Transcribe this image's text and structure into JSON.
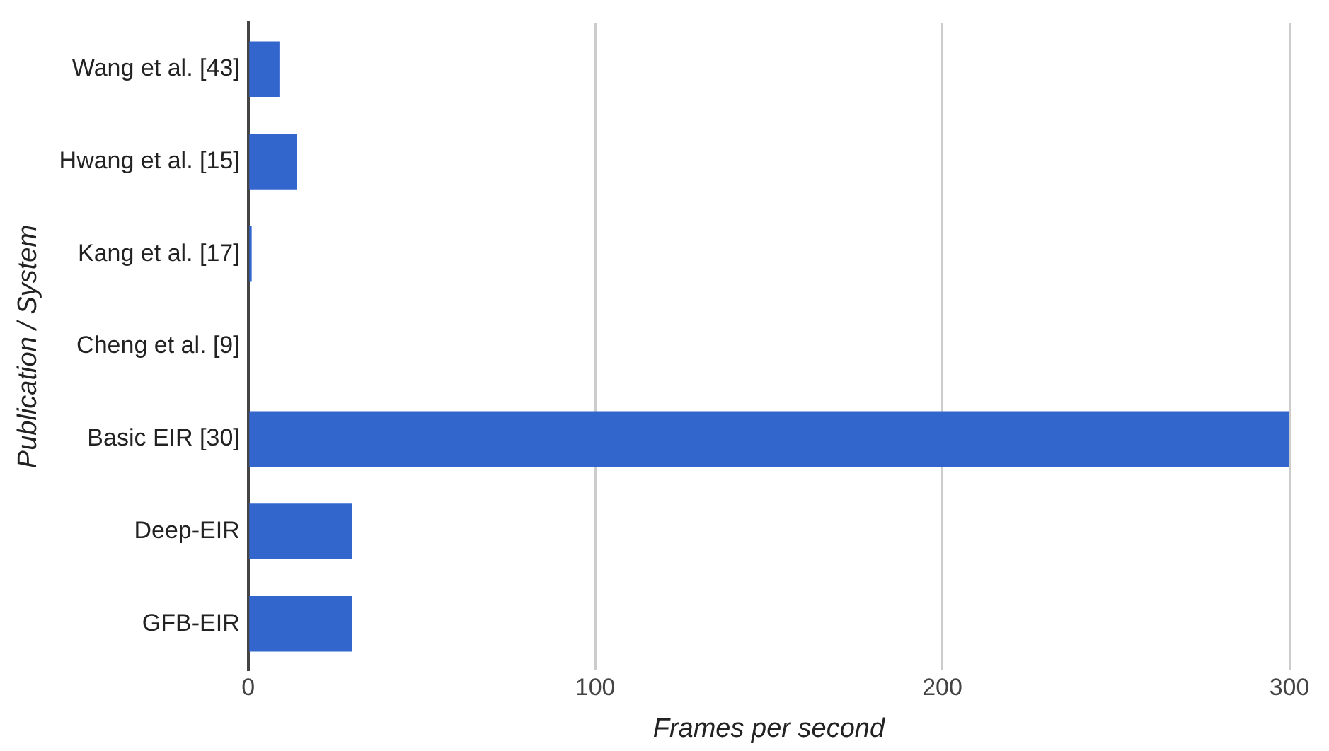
{
  "chart_data": {
    "type": "bar",
    "orientation": "horizontal",
    "xlabel": "Frames per second",
    "ylabel": "Publication / System",
    "categories": [
      "Wang et al. [43]",
      "Hwang et al. [15]",
      "Kang et al. [17]",
      "Cheng et al. [9]",
      "Basic EIR [30]",
      "Deep-EIR",
      "GFB-EIR"
    ],
    "values": [
      9,
      14,
      1,
      0,
      300,
      30,
      30
    ],
    "color": "#3366cc",
    "xlim": [
      0,
      300
    ],
    "xticks": [
      0,
      100,
      200,
      300
    ],
    "grid": "x",
    "legend": false
  }
}
